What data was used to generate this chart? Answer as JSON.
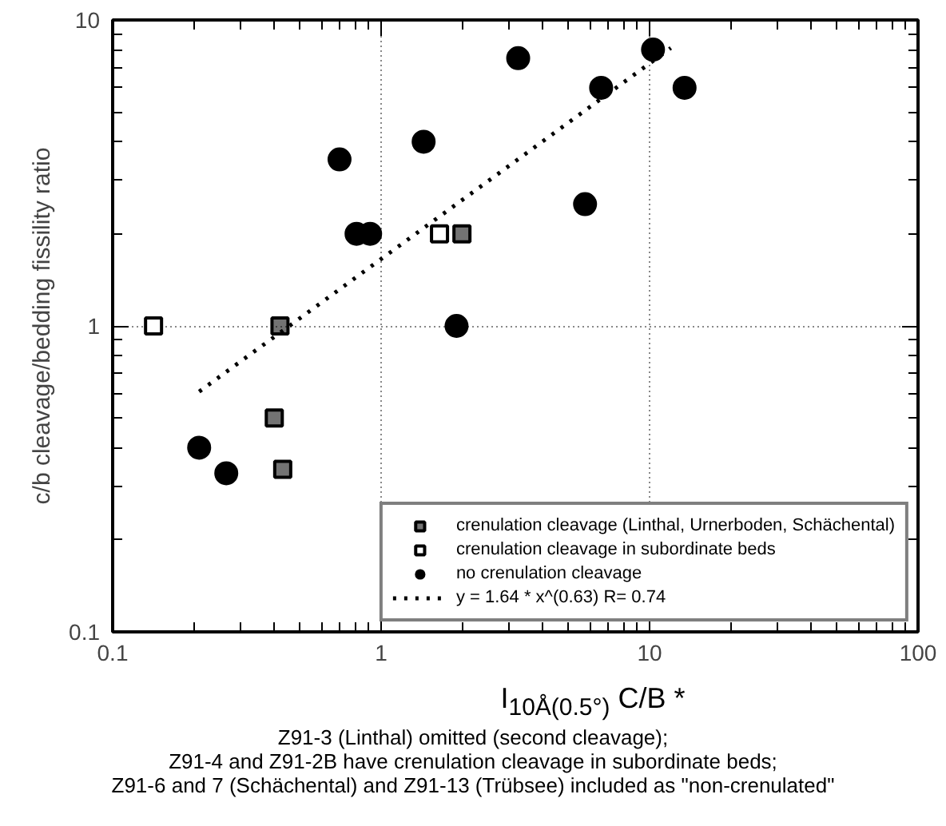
{
  "chart_data": {
    "type": "scatter",
    "xlabel": "I$_{10Å(0.5°)}$ C/B *",
    "ylabel": "c/b cleavage/bedding fissility ratio",
    "log": "xy",
    "xlim": [
      0.1,
      100
    ],
    "ylim": [
      0.1,
      10
    ],
    "xticks": [
      0.1,
      1,
      10,
      100
    ],
    "yticks": [
      0.1,
      1,
      10
    ],
    "grid": true,
    "legend": "bottom right",
    "series": [
      {
        "name": "crenulation cleavage (Linthal, Urnerboden, Schächental)",
        "color": "#000000",
        "marker": "square",
        "x": [
          0.42,
          0.4,
          0.43,
          2.0
        ],
        "values": [
          1.0,
          0.5,
          0.34,
          2.0
        ]
      },
      {
        "name": "crenulation cleavage in subordinate beds",
        "color": "#000000",
        "marker": "square",
        "x": [
          0.142,
          1.65
        ],
        "values": [
          1.0,
          2.0
        ]
      },
      {
        "name": "no crenulation cleavage",
        "color": "#000000",
        "marker": "circle",
        "x": [
          0.7,
          0.81,
          0.91,
          1.44,
          3.24,
          1.91,
          0.21,
          0.265,
          10.3,
          6.6,
          13.5,
          5.75
        ],
        "values": [
          3.5,
          2.0,
          2.0,
          4.0,
          7.5,
          1.0,
          0.4,
          0.33,
          8.0,
          6.0,
          6.0,
          2.5
        ]
      },
      {
        "name": "y = 1.64 * x^(0.63) R= 0.74",
        "type": "line",
        "line_style": "dotted",
        "color": "#000000",
        "x": [
          0.21,
          12.0
        ],
        "values": [
          0.61,
          8.1
        ]
      }
    ],
    "annotations": [
      "Z91-3 (Linthal) omitted (second cleavage);",
      "Z91-4 and Z91-2B have crenulation cleavage in subordinate beds;",
      "Z91-6 and 7 (Schächental) and Z91-13 (Trübsee) included as \"non-crenulated\""
    ]
  }
}
